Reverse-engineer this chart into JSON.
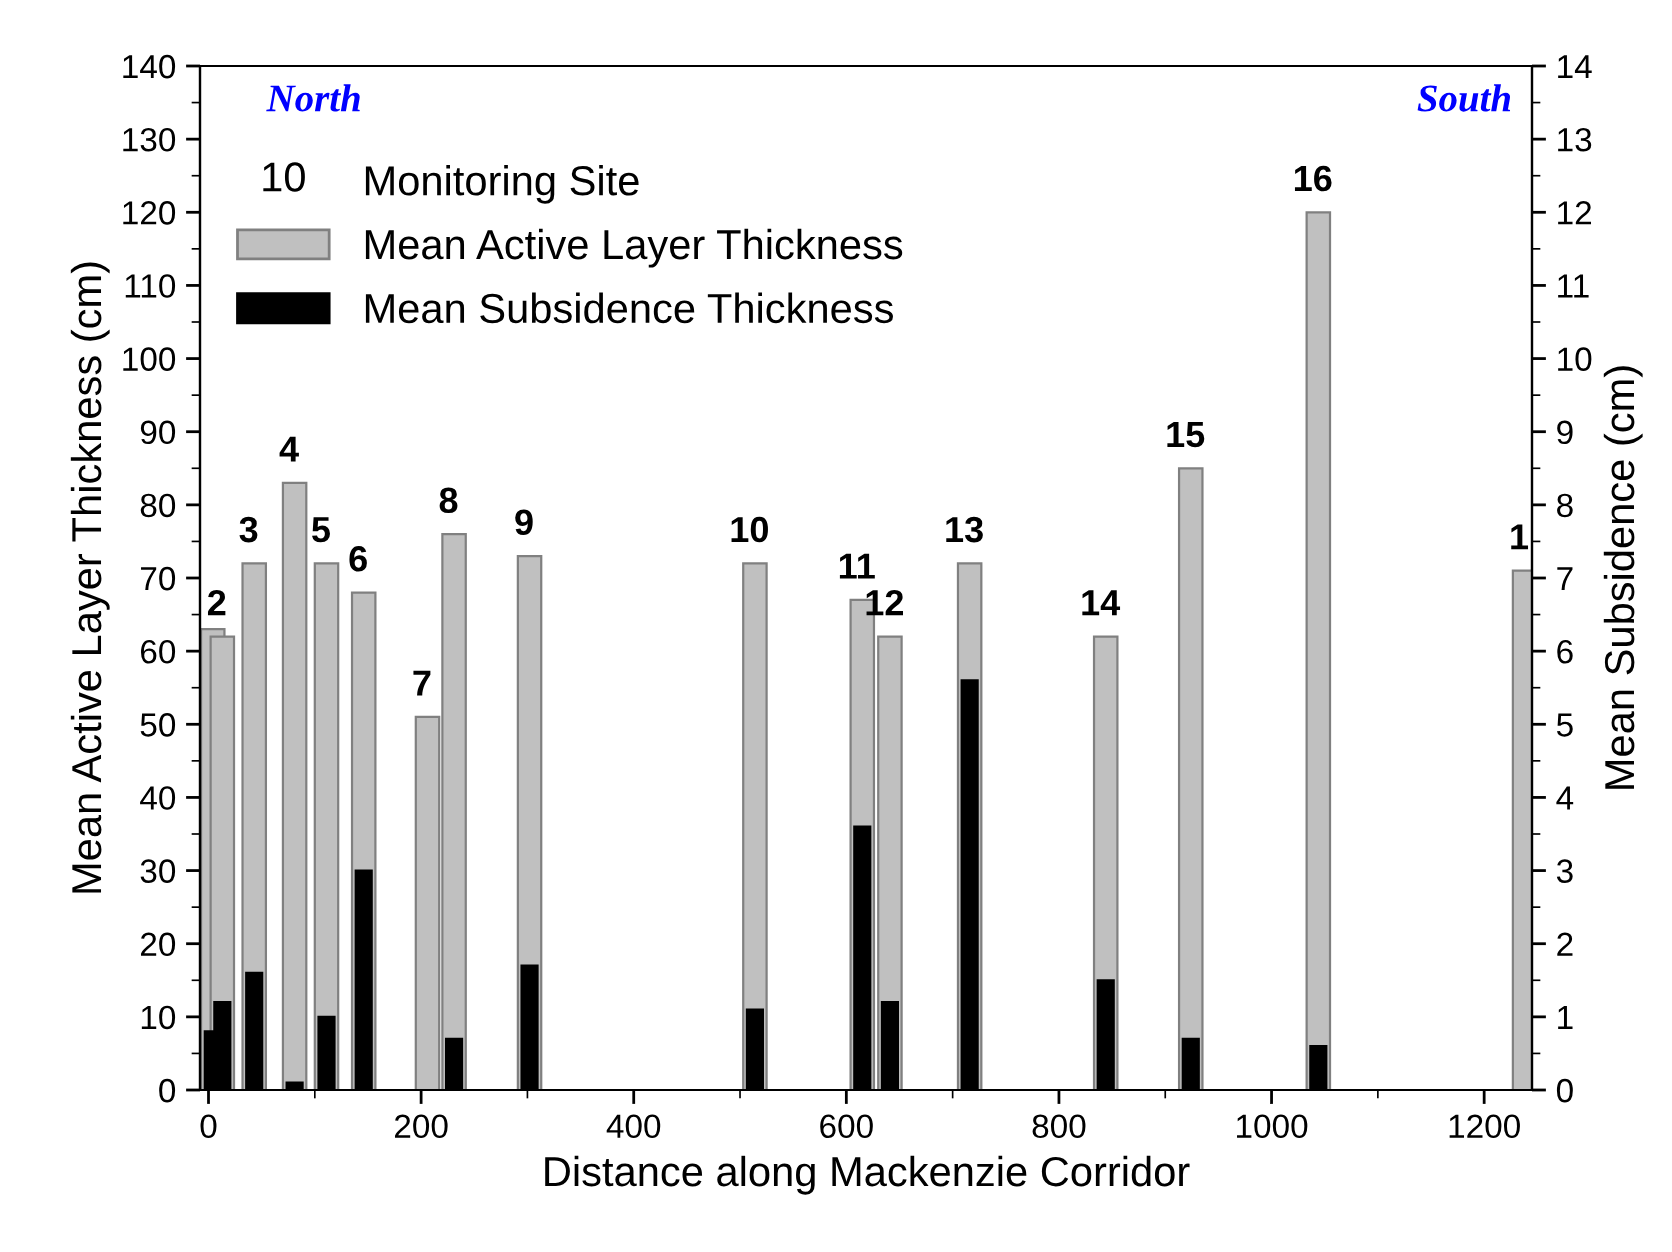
{
  "chart_data": {
    "type": "bar",
    "xlabel": "Distance along Mackenzie Corridor",
    "ylabel": "Mean Active Layer Thickness (cm)",
    "y2label": "Mean Subsidence (cm)",
    "x": [
      4,
      13,
      43,
      81,
      111,
      146,
      206,
      231,
      302,
      514,
      615,
      641,
      716,
      844,
      924,
      1044,
      1238
    ],
    "series": [
      {
        "name": "Mean Active Layer Thickness",
        "color": "#c0c0c0",
        "values": [
          63,
          62,
          72,
          83,
          72,
          68,
          51,
          76,
          73,
          72,
          67,
          62,
          72,
          62,
          85,
          120,
          71
        ]
      },
      {
        "name": "Mean Subsidence Thickness",
        "color": "#000000",
        "axis": "y2",
        "values": [
          0.8,
          1.2,
          1.6,
          0.1,
          1.0,
          3.0,
          null,
          0.7,
          1.7,
          1.1,
          3.6,
          1.2,
          5.6,
          1.5,
          0.7,
          0.6,
          null
        ]
      }
    ],
    "xlim": [
      -8,
      1245
    ],
    "xticks": [
      0,
      200,
      400,
      600,
      800,
      1000,
      1200
    ],
    "ylim": [
      0,
      140
    ],
    "yticks": [
      0,
      10,
      20,
      30,
      40,
      50,
      60,
      70,
      80,
      90,
      100,
      110,
      120,
      130,
      140
    ],
    "y2lim": [
      0,
      14
    ],
    "y2ticks": [
      0,
      1,
      2,
      3,
      4,
      5,
      6,
      7,
      8,
      9,
      10,
      11,
      12,
      13,
      14
    ],
    "annotations": [
      "North",
      "South",
      "10",
      "Monitoring Site",
      {
        "text": "2",
        "x": 13,
        "y": 62
      },
      {
        "text": "3",
        "x": 43,
        "y": 72
      },
      {
        "text": "4",
        "x": 81,
        "y": 83
      },
      {
        "text": "5",
        "x": 111,
        "y": 72
      },
      {
        "text": "6",
        "x": 146,
        "y": 68
      },
      {
        "text": "7",
        "x": 206,
        "y": 51
      },
      {
        "text": "8",
        "x": 231,
        "y": 76
      },
      {
        "text": "9",
        "x": 302,
        "y": 73
      },
      {
        "text": "10",
        "x": 514,
        "y": 72
      },
      {
        "text": "11",
        "x": 615,
        "y": 67
      },
      {
        "text": "12",
        "x": 641,
        "y": 62
      },
      {
        "text": "13",
        "x": 716,
        "y": 72
      },
      {
        "text": "14",
        "x": 844,
        "y": 62
      },
      {
        "text": "15",
        "x": 924,
        "y": 85
      },
      {
        "text": "16",
        "x": 1044,
        "y": 120
      },
      {
        "text": "1",
        "x": 1238,
        "y": 71
      }
    ],
    "legend": "top left",
    "grid": false
  }
}
